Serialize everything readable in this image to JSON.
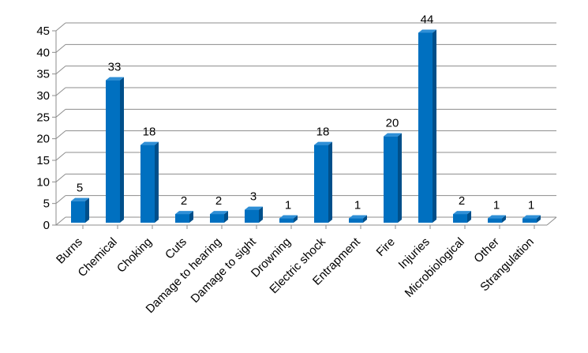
{
  "chart_data": {
    "type": "bar",
    "style": "3d-column",
    "categories": [
      "Burns",
      "Chemical",
      "Choking",
      "Cuts",
      "Damage to hearing",
      "Damage to sight",
      "Drowning",
      "Electric shock",
      "Entrapment",
      "Fire",
      "Injuries",
      "Microbiological",
      "Other",
      "Strangulation"
    ],
    "values": [
      5,
      33,
      18,
      2,
      2,
      3,
      1,
      18,
      1,
      20,
      44,
      2,
      1,
      1
    ],
    "data_labels": [
      "5",
      "33",
      "18",
      "2",
      "2",
      "3",
      "1",
      "18",
      "1",
      "20",
      "44",
      "2",
      "1",
      "1"
    ],
    "title": "",
    "xlabel": "",
    "ylabel": "",
    "ylim": [
      0,
      45
    ],
    "yticks": [
      "0",
      "5",
      "10",
      "15",
      "20",
      "25",
      "30",
      "35",
      "40",
      "45"
    ],
    "grid": true,
    "legend": "none",
    "colors": {
      "bar_front": "#0070c0",
      "bar_side": "#004f8a",
      "bar_top": "#2f8fd6",
      "grid": "#8c8c8c"
    }
  }
}
